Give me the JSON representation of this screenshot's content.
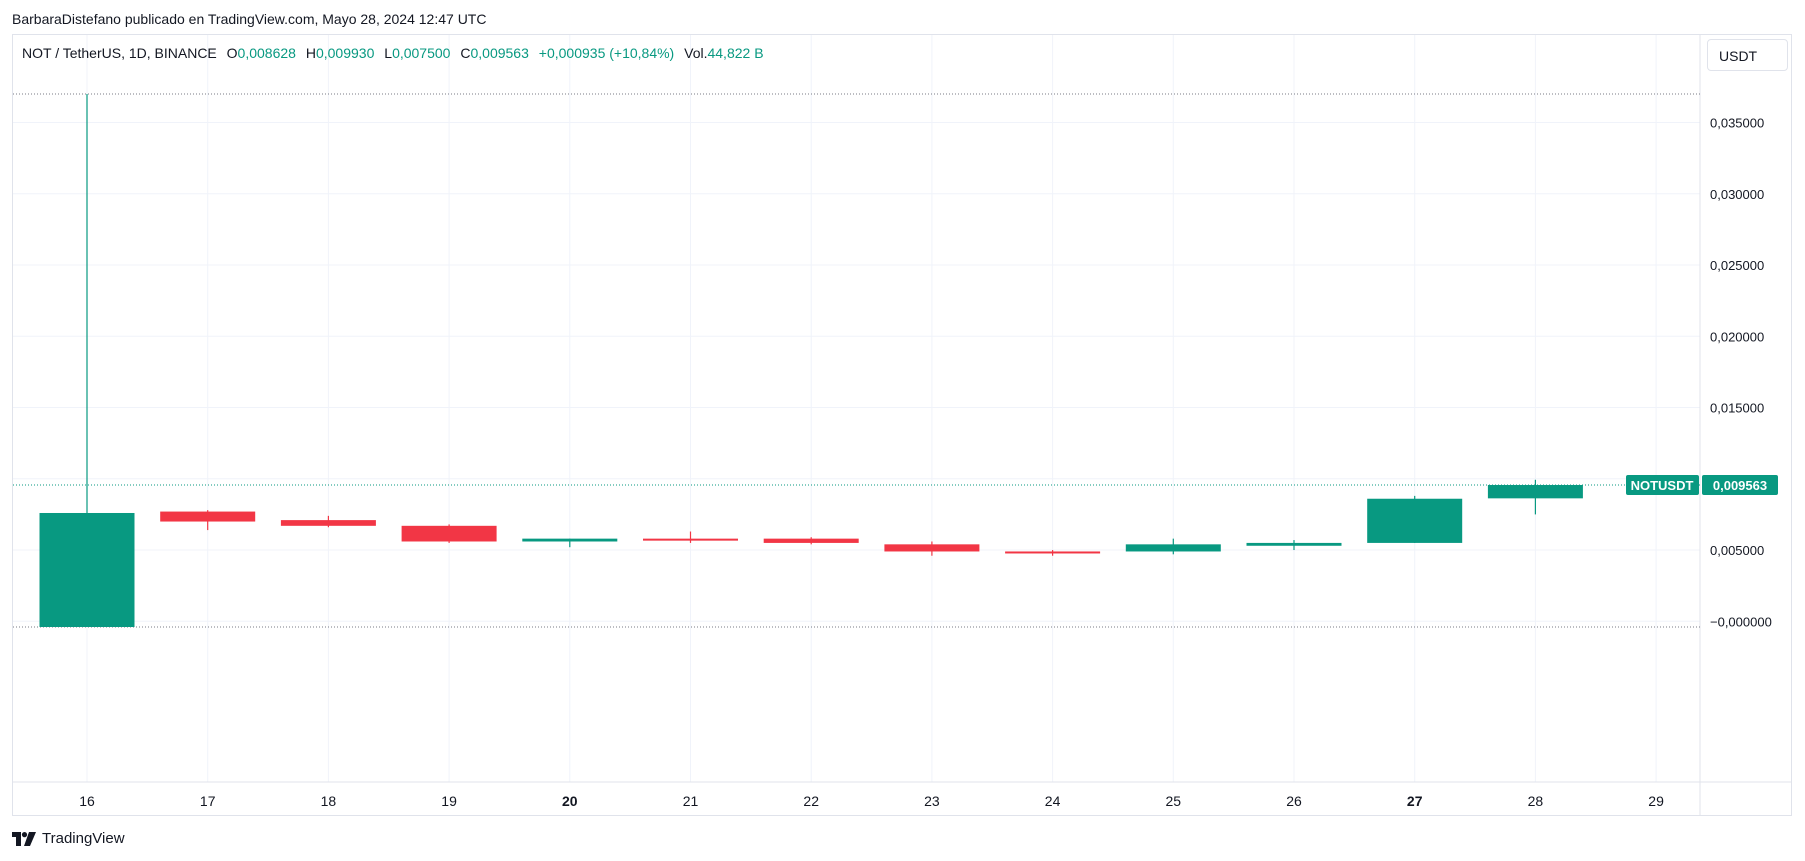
{
  "publisher_line": "BarbaraDistefano publicado en TradingView.com, Mayo 28, 2024 12:47 UTC",
  "legend": {
    "symbol": "NOT / TetherUS, 1D, BINANCE",
    "o_label": "O",
    "o_value": "0,008628",
    "h_label": "H",
    "h_value": "0,009930",
    "l_label": "L",
    "l_value": "0,007500",
    "c_label": "C",
    "c_value": "0,009563",
    "change": "+0,000935 (+10,84%)",
    "vol_label": "Vol.",
    "vol_value": "44,822 B"
  },
  "currency_button": "USDT",
  "price_label": {
    "name": "NOTUSDT",
    "value": "0,009563"
  },
  "brand": "TradingView",
  "colors": {
    "up": "#089981",
    "down": "#f23645",
    "grid": "#f0f3fa",
    "text": "#131722"
  },
  "chart_data": {
    "type": "candlestick",
    "x": [
      "16",
      "17",
      "18",
      "19",
      "20",
      "21",
      "22",
      "23",
      "24",
      "25",
      "26",
      "27",
      "28",
      "29"
    ],
    "x_bold": [
      "20",
      "27"
    ],
    "ylim": [
      -0.0025,
      0.039
    ],
    "yticks": [
      {
        "value": 0.035,
        "label": "0,035000"
      },
      {
        "value": 0.03,
        "label": "0,030000"
      },
      {
        "value": 0.025,
        "label": "0,025000"
      },
      {
        "value": 0.02,
        "label": "0,020000"
      },
      {
        "value": 0.015,
        "label": "0,015000"
      },
      {
        "value": 0.01,
        "label": "0,010000"
      },
      {
        "value": 0.005,
        "label": "0,005000"
      },
      {
        "value": 0.0,
        "label": "−0,000000"
      }
    ],
    "candles": [
      {
        "x": "16",
        "open": -0.0004,
        "high": 0.037,
        "low": -0.0004,
        "close": 0.0076
      },
      {
        "x": "17",
        "open": 0.0077,
        "high": 0.0078,
        "low": 0.0064,
        "close": 0.007
      },
      {
        "x": "18",
        "open": 0.0071,
        "high": 0.0074,
        "low": 0.0066,
        "close": 0.0067
      },
      {
        "x": "19",
        "open": 0.0067,
        "high": 0.0068,
        "low": 0.0055,
        "close": 0.0056
      },
      {
        "x": "20",
        "open": 0.0056,
        "high": 0.0058,
        "low": 0.0052,
        "close": 0.0058
      },
      {
        "x": "21",
        "open": 0.0058,
        "high": 0.0063,
        "low": 0.0055,
        "close": 0.0057
      },
      {
        "x": "22",
        "open": 0.0058,
        "high": 0.0059,
        "low": 0.0054,
        "close": 0.0055
      },
      {
        "x": "23",
        "open": 0.0054,
        "high": 0.0056,
        "low": 0.0046,
        "close": 0.0049
      },
      {
        "x": "24",
        "open": 0.0049,
        "high": 0.005,
        "low": 0.0046,
        "close": 0.0048
      },
      {
        "x": "25",
        "open": 0.0049,
        "high": 0.0058,
        "low": 0.0047,
        "close": 0.0054
      },
      {
        "x": "26",
        "open": 0.0053,
        "high": 0.0057,
        "low": 0.005,
        "close": 0.0055
      },
      {
        "x": "27",
        "open": 0.0055,
        "high": 0.0088,
        "low": 0.0055,
        "close": 0.0086
      },
      {
        "x": "28",
        "open": 0.008628,
        "high": 0.00993,
        "low": 0.0075,
        "close": 0.009563
      }
    ],
    "reference_lines": [
      {
        "value": 0.037,
        "style": "dotted"
      },
      {
        "value": -0.0004,
        "style": "dotted"
      }
    ],
    "last_price": 0.009563
  }
}
